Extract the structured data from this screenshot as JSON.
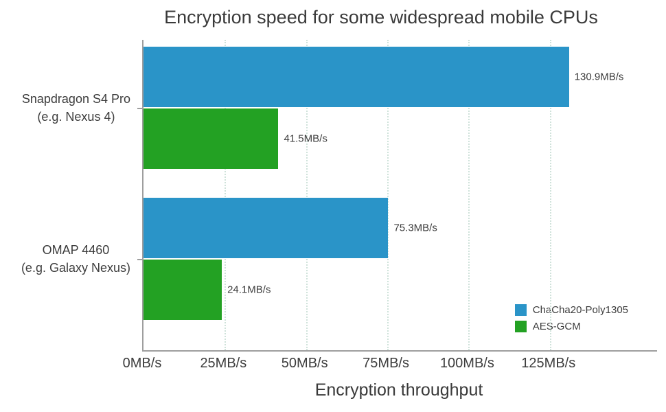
{
  "chart_data": {
    "type": "bar",
    "orientation": "horizontal",
    "title": "Encryption speed for some widespread mobile CPUs",
    "xlabel": "Encryption throughput",
    "xlim": [
      0,
      158
    ],
    "grid": "dotted-vertical",
    "legend_position": "bottom-right",
    "categories": [
      {
        "lines": [
          "Snapdragon S4 Pro",
          "(e.g. Nexus 4)"
        ]
      },
      {
        "lines": [
          "OMAP 4460",
          "(e.g. Galaxy Nexus)"
        ]
      }
    ],
    "series": [
      {
        "name": "ChaCha20-Poly1305",
        "color": "#2A94C8",
        "values": [
          130.9,
          75.3
        ],
        "value_labels": [
          "130.9MB/s",
          "75.3MB/s"
        ]
      },
      {
        "name": "AES-GCM",
        "color": "#23A123",
        "values": [
          41.5,
          24.1
        ],
        "value_labels": [
          "41.5MB/s",
          "24.1MB/s"
        ]
      }
    ],
    "x_ticks": [
      {
        "value": 0,
        "label": "0MB/s"
      },
      {
        "value": 25,
        "label": "25MB/s"
      },
      {
        "value": 50,
        "label": "50MB/s"
      },
      {
        "value": 75,
        "label": "75MB/s"
      },
      {
        "value": 100,
        "label": "100MB/s"
      },
      {
        "value": 125,
        "label": "125MB/s"
      }
    ],
    "colors": {
      "axis": "#9e9e9e",
      "gridline": "#cfe2da",
      "text": "#3c3c3c"
    }
  }
}
